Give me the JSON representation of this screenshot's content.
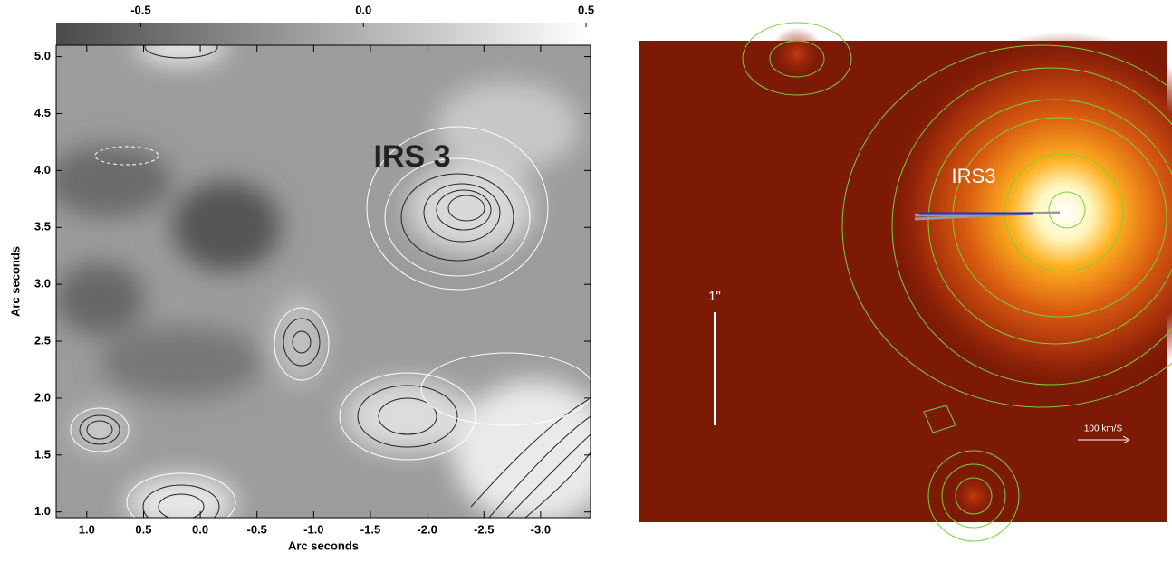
{
  "chart_data": [
    {
      "type": "contour",
      "xlabel": "Arc seconds",
      "ylabel": "Arc seconds",
      "annotation": "IRS 3",
      "xlim": [
        1.27,
        -3.44
      ],
      "ylim": [
        0.95,
        5.1
      ],
      "xticks": [
        {
          "value": 1,
          "label": "1.0"
        },
        0.5,
        {
          "value": 0,
          "label": "0.0"
        },
        -0.5,
        {
          "value": -1,
          "label": "-1.0"
        },
        -1.5,
        {
          "value": -2,
          "label": "-2.0"
        },
        -2.5,
        {
          "value": -3,
          "label": "-3.0"
        }
      ],
      "yticks": [
        {
          "value": 1,
          "label": "1.0"
        },
        1.5,
        {
          "value": 2,
          "label": "2.0"
        },
        2.5,
        {
          "value": 3,
          "label": "3.0"
        },
        3.5,
        {
          "value": 4,
          "label": "4.0"
        },
        4.5,
        {
          "value": 5,
          "label": "5.0"
        }
      ],
      "clim": [
        -0.69,
        0.51
      ],
      "cticks": [
        -0.5,
        {
          "value": 0,
          "label": "0.0"
        },
        0.5
      ]
    },
    {
      "type": "image",
      "annotation": "IRS3",
      "scale_label": "1\"",
      "velocity_label": "100 km/S"
    }
  ]
}
